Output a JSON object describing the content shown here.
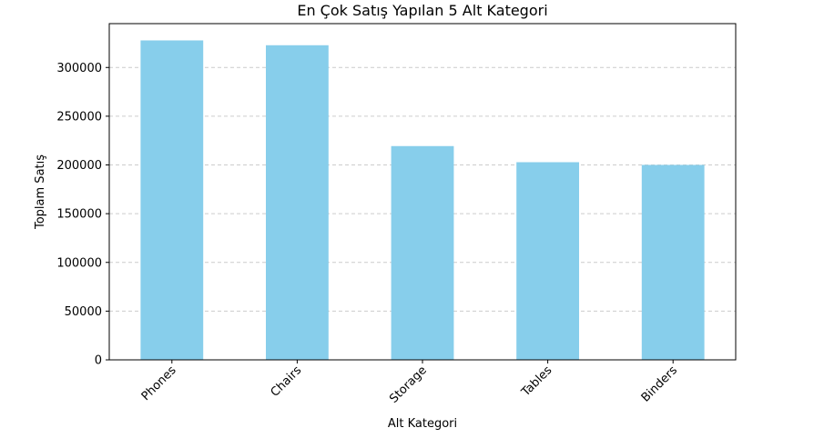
{
  "chart_data": {
    "type": "bar",
    "title": "En Çok Satış Yapılan 5 Alt Kategori",
    "xlabel": "Alt Kategori",
    "ylabel": "Toplam Satış",
    "categories": [
      "Phones",
      "Chairs",
      "Storage",
      "Tables",
      "Binders"
    ],
    "values": [
      327782,
      322823,
      219343,
      202811,
      200029
    ],
    "ylim": [
      0,
      345000
    ],
    "yticks": [
      0,
      50000,
      100000,
      150000,
      200000,
      250000,
      300000
    ],
    "ytick_labels": [
      "0",
      "50000",
      "100000",
      "150000",
      "200000",
      "250000",
      "300000"
    ],
    "grid": "y-dashed",
    "colors": {
      "bar": "#87ceeb",
      "grid": "#cccccc",
      "axis": "#000000"
    }
  }
}
